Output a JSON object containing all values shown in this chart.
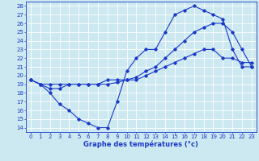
{
  "title": "",
  "xlabel": "Graphe des températures (°c)",
  "bg_color": "#cce8f0",
  "grid_color": "#ffffff",
  "line_color": "#1a3ac8",
  "xlim": [
    -0.5,
    23.5
  ],
  "ylim": [
    13.5,
    28.5
  ],
  "xticks": [
    0,
    1,
    2,
    3,
    4,
    5,
    6,
    7,
    8,
    9,
    10,
    11,
    12,
    13,
    14,
    15,
    16,
    17,
    18,
    19,
    20,
    21,
    22,
    23
  ],
  "yticks": [
    14,
    15,
    16,
    17,
    18,
    19,
    20,
    21,
    22,
    23,
    24,
    25,
    26,
    27,
    28
  ],
  "line1_x": [
    0,
    1,
    2,
    3,
    4,
    5,
    6,
    7,
    8,
    9,
    10,
    11,
    12,
    13,
    14,
    15,
    16,
    17,
    18,
    19,
    20,
    21,
    22,
    23
  ],
  "line1_y": [
    19.5,
    19,
    18,
    16.7,
    16,
    15,
    14.5,
    14,
    14,
    17,
    20.5,
    22,
    23,
    23,
    25,
    27,
    27.5,
    28.0,
    27.5,
    27,
    26.5,
    23,
    21,
    21
  ],
  "line2_x": [
    0,
    1,
    2,
    3,
    4,
    5,
    6,
    7,
    8,
    9,
    10,
    11,
    12,
    13,
    14,
    15,
    16,
    17,
    18,
    19,
    20,
    21,
    22,
    23
  ],
  "line2_y": [
    19.5,
    19.0,
    18.5,
    18.5,
    19,
    19,
    19,
    19,
    19,
    19.2,
    19.5,
    19.8,
    20.5,
    21,
    22,
    23,
    24,
    25,
    25.5,
    26,
    26,
    25,
    23,
    21
  ],
  "line3_x": [
    0,
    1,
    2,
    3,
    4,
    5,
    6,
    7,
    8,
    9,
    10,
    11,
    12,
    13,
    14,
    15,
    16,
    17,
    18,
    19,
    20,
    21,
    22,
    23
  ],
  "line3_y": [
    19.5,
    19.0,
    19.0,
    19.0,
    19.0,
    19.0,
    19.0,
    19.0,
    19.5,
    19.5,
    19.5,
    19.5,
    20.0,
    20.5,
    21,
    21.5,
    22,
    22.5,
    23,
    23,
    22,
    22,
    21.5,
    21.5
  ],
  "tick_fontsize": 5,
  "xlabel_fontsize": 6,
  "linewidth": 0.8,
  "markersize": 1.8
}
